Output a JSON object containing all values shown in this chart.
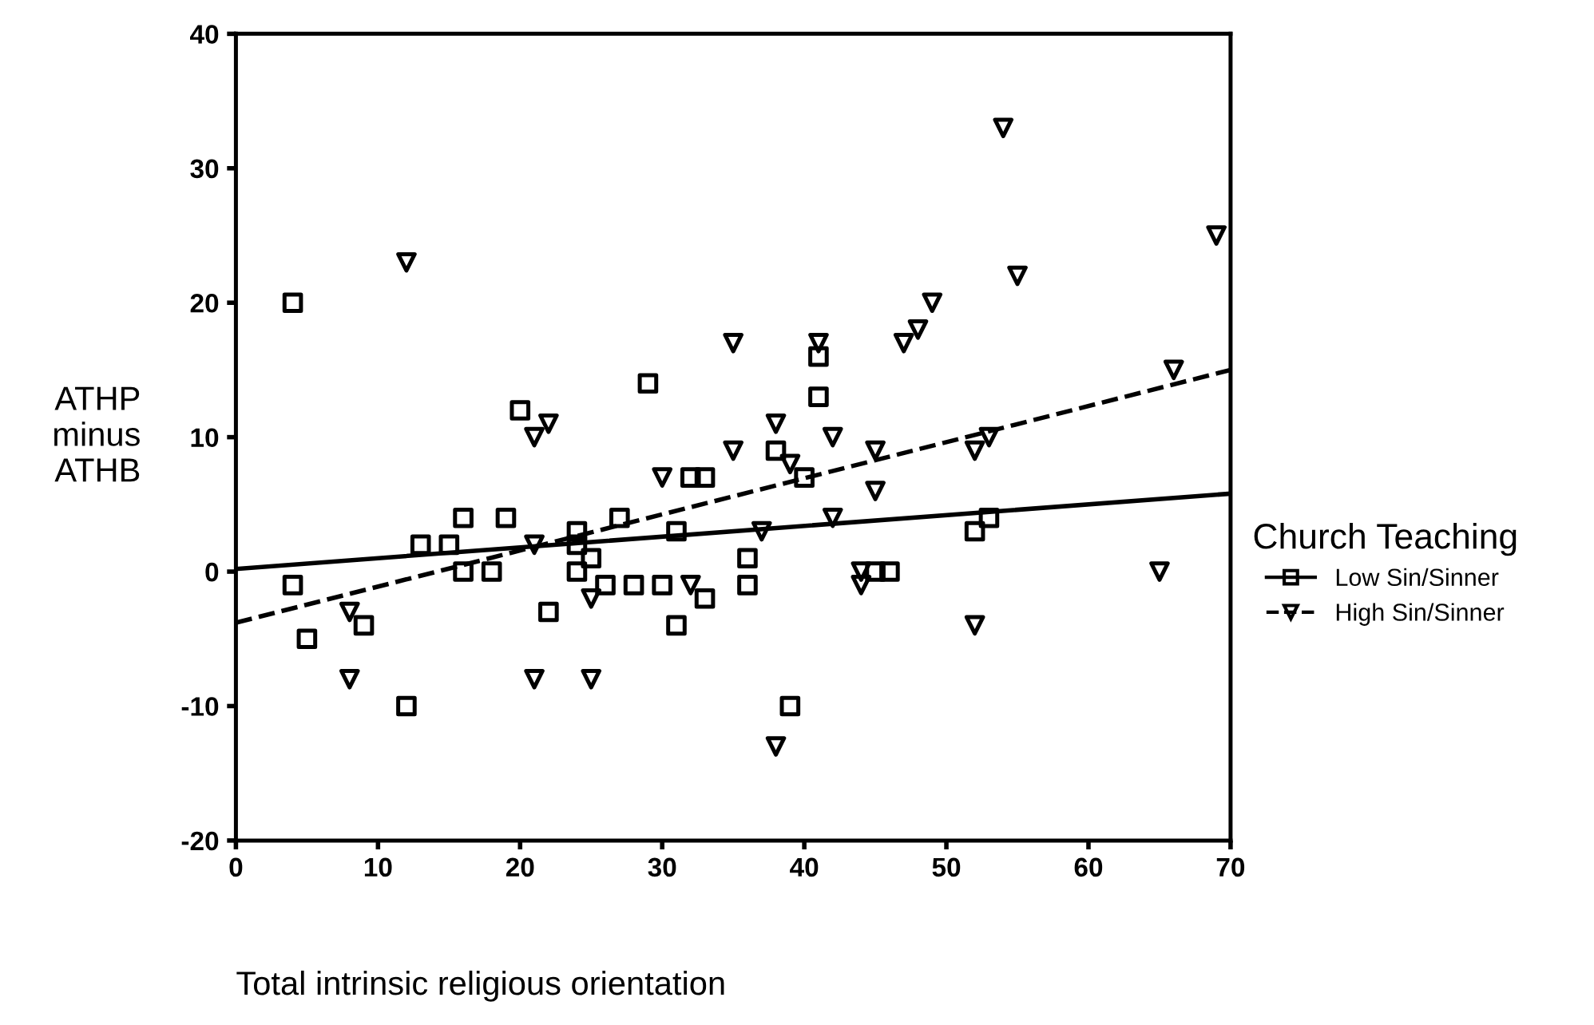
{
  "chart_data": {
    "type": "scatter",
    "xlabel": "Total intrinsic religious orientation",
    "ylabel": "ATHP\nminus\nATHB",
    "legend_title": "Church Teaching",
    "legend": "right",
    "xlim": [
      0,
      70
    ],
    "xticks": [
      0,
      10,
      20,
      30,
      40,
      50,
      60,
      70
    ],
    "ylim": [
      -20,
      40
    ],
    "yticks": [
      -20,
      -10,
      0,
      10,
      20,
      30,
      40
    ],
    "grid": false,
    "series": [
      {
        "name": "Low Sin/Sinner",
        "color": "#000000",
        "marker": "square",
        "x": [
          4,
          4,
          5,
          9,
          12,
          13,
          15,
          16,
          16,
          18,
          19,
          20,
          22,
          24,
          24,
          24,
          25,
          26,
          27,
          28,
          29,
          30,
          31,
          31,
          32,
          33,
          33,
          36,
          36,
          38,
          39,
          40,
          41,
          41,
          45,
          46,
          52,
          53
        ],
        "values": [
          20,
          -1,
          -5,
          -4,
          -10,
          2,
          2,
          4,
          0,
          0,
          4,
          12,
          -3,
          3,
          2,
          0,
          1,
          -1,
          4,
          -1,
          14,
          -1,
          -4,
          3,
          7,
          7,
          -2,
          -1,
          1,
          9,
          -10,
          7,
          16,
          13,
          0,
          0,
          3,
          4
        ]
      },
      {
        "name": "High Sin/Sinner",
        "color": "#000000",
        "marker": "triangle",
        "x": [
          8,
          8,
          12,
          21,
          21,
          22,
          21,
          25,
          25,
          30,
          32,
          35,
          35,
          37,
          38,
          38,
          39,
          41,
          42,
          42,
          44,
          44,
          45,
          45,
          47,
          48,
          49,
          52,
          52,
          53,
          54,
          55,
          65,
          66,
          69
        ],
        "values": [
          -8,
          -3,
          23,
          10,
          -8,
          11,
          2,
          -8,
          -2,
          7,
          -1,
          17,
          9,
          3,
          -13,
          11,
          8,
          17,
          10,
          4,
          0,
          -1,
          9,
          6,
          17,
          18,
          20,
          9,
          -4,
          10,
          33,
          22,
          0,
          15,
          25
        ]
      },
      {
        "type": "line",
        "color": "#000000",
        "line_style": "solid",
        "x": [
          0,
          70
        ],
        "values": [
          0.2,
          5.8
        ]
      },
      {
        "type": "line",
        "color": "#000000",
        "line_style": "dashed",
        "x": [
          0,
          70
        ],
        "values": [
          -3.8,
          15
        ]
      }
    ]
  }
}
